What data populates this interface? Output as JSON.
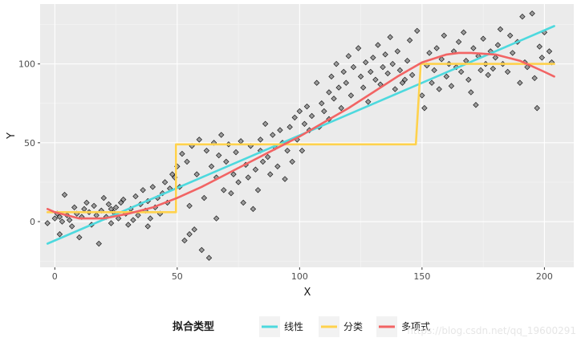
{
  "chart_data": {
    "type": "scatter",
    "xlabel": "X",
    "ylabel": "Y",
    "xlim": [
      -6,
      212
    ],
    "ylim": [
      -29,
      138
    ],
    "x_ticks": [
      0,
      50,
      100,
      150,
      200
    ],
    "y_ticks": [
      0,
      50,
      100
    ],
    "grid": true,
    "legend_position": "bottom",
    "legend": {
      "title": "拟合类型",
      "entries": [
        {
          "label": "线性",
          "color": "#4dd9de"
        },
        {
          "label": "分类",
          "color": "#ffd24d"
        },
        {
          "label": "多项式",
          "color": "#f26464"
        }
      ]
    },
    "points": [
      {
        "x": -3,
        "y": -1
      },
      {
        "x": 0,
        "y": 2
      },
      {
        "x": 1,
        "y": 5
      },
      {
        "x": 2,
        "y": 3
      },
      {
        "x": 3,
        "y": 0
      },
      {
        "x": 4,
        "y": 17
      },
      {
        "x": 5,
        "y": 4
      },
      {
        "x": 6,
        "y": 1
      },
      {
        "x": 7,
        "y": -3
      },
      {
        "x": 8,
        "y": 9
      },
      {
        "x": 9,
        "y": 5
      },
      {
        "x": 10,
        "y": -10
      },
      {
        "x": 11,
        "y": 3
      },
      {
        "x": 12,
        "y": 8
      },
      {
        "x": 13,
        "y": 12
      },
      {
        "x": 14,
        "y": 6
      },
      {
        "x": 15,
        "y": -2
      },
      {
        "x": 16,
        "y": 10
      },
      {
        "x": 17,
        "y": 4
      },
      {
        "x": 18,
        "y": -14
      },
      {
        "x": 19,
        "y": 7
      },
      {
        "x": 20,
        "y": 15
      },
      {
        "x": 21,
        "y": 3
      },
      {
        "x": 22,
        "y": 11
      },
      {
        "x": 23,
        "y": -1
      },
      {
        "x": 24,
        "y": 6
      },
      {
        "x": 25,
        "y": 9
      },
      {
        "x": 26,
        "y": 2
      },
      {
        "x": 27,
        "y": 12
      },
      {
        "x": 28,
        "y": 14
      },
      {
        "x": 29,
        "y": 5
      },
      {
        "x": 30,
        "y": -2
      },
      {
        "x": 31,
        "y": 8
      },
      {
        "x": 32,
        "y": 1
      },
      {
        "x": 33,
        "y": 16
      },
      {
        "x": 34,
        "y": 4
      },
      {
        "x": 35,
        "y": 11
      },
      {
        "x": 36,
        "y": 20
      },
      {
        "x": 37,
        "y": 7
      },
      {
        "x": 38,
        "y": 13
      },
      {
        "x": 39,
        "y": 2
      },
      {
        "x": 40,
        "y": 22
      },
      {
        "x": 41,
        "y": 9
      },
      {
        "x": 42,
        "y": 15
      },
      {
        "x": 43,
        "y": 5
      },
      {
        "x": 44,
        "y": 18
      },
      {
        "x": 45,
        "y": 25
      },
      {
        "x": 46,
        "y": 12
      },
      {
        "x": 47,
        "y": 21
      },
      {
        "x": 48,
        "y": 30
      },
      {
        "x": 49,
        "y": 28
      },
      {
        "x": 50,
        "y": 35
      },
      {
        "x": 51,
        "y": 22
      },
      {
        "x": 52,
        "y": 43
      },
      {
        "x": 53,
        "y": -12
      },
      {
        "x": 54,
        "y": 38
      },
      {
        "x": 55,
        "y": 10
      },
      {
        "x": 56,
        "y": 48
      },
      {
        "x": 57,
        "y": -5
      },
      {
        "x": 58,
        "y": 30
      },
      {
        "x": 59,
        "y": 52
      },
      {
        "x": 60,
        "y": -18
      },
      {
        "x": 61,
        "y": 15
      },
      {
        "x": 62,
        "y": 45
      },
      {
        "x": 63,
        "y": -23
      },
      {
        "x": 64,
        "y": 35
      },
      {
        "x": 65,
        "y": 50
      },
      {
        "x": 66,
        "y": 2
      },
      {
        "x": 67,
        "y": 42
      },
      {
        "x": 68,
        "y": 55
      },
      {
        "x": 69,
        "y": 20
      },
      {
        "x": 70,
        "y": 38
      },
      {
        "x": 71,
        "y": 49
      },
      {
        "x": 72,
        "y": 18
      },
      {
        "x": 73,
        "y": 30
      },
      {
        "x": 74,
        "y": 44
      },
      {
        "x": 75,
        "y": 25
      },
      {
        "x": 76,
        "y": 51
      },
      {
        "x": 77,
        "y": 12
      },
      {
        "x": 78,
        "y": 36
      },
      {
        "x": 79,
        "y": 28
      },
      {
        "x": 80,
        "y": 48
      },
      {
        "x": 81,
        "y": 8
      },
      {
        "x": 82,
        "y": 33
      },
      {
        "x": 83,
        "y": 20
      },
      {
        "x": 84,
        "y": 45
      },
      {
        "x": 85,
        "y": 38
      },
      {
        "x": 86,
        "y": 62
      },
      {
        "x": 87,
        "y": 41
      },
      {
        "x": 88,
        "y": 30
      },
      {
        "x": 89,
        "y": 55
      },
      {
        "x": 90,
        "y": 47
      },
      {
        "x": 91,
        "y": 35
      },
      {
        "x": 92,
        "y": 58
      },
      {
        "x": 93,
        "y": 50
      },
      {
        "x": 94,
        "y": 27
      },
      {
        "x": 95,
        "y": 45
      },
      {
        "x": 96,
        "y": 60
      },
      {
        "x": 97,
        "y": 38
      },
      {
        "x": 98,
        "y": 66
      },
      {
        "x": 99,
        "y": 52
      },
      {
        "x": 100,
        "y": 70
      },
      {
        "x": 101,
        "y": 45
      },
      {
        "x": 102,
        "y": 62
      },
      {
        "x": 103,
        "y": 73
      },
      {
        "x": 104,
        "y": 58
      },
      {
        "x": 105,
        "y": 67
      },
      {
        "x": 107,
        "y": 88
      },
      {
        "x": 108,
        "y": 60
      },
      {
        "x": 109,
        "y": 75
      },
      {
        "x": 110,
        "y": 70
      },
      {
        "x": 112,
        "y": 82
      },
      {
        "x": 113,
        "y": 92
      },
      {
        "x": 114,
        "y": 78
      },
      {
        "x": 115,
        "y": 100
      },
      {
        "x": 116,
        "y": 85
      },
      {
        "x": 117,
        "y": 72
      },
      {
        "x": 118,
        "y": 95
      },
      {
        "x": 119,
        "y": 88
      },
      {
        "x": 120,
        "y": 105
      },
      {
        "x": 121,
        "y": 80
      },
      {
        "x": 122,
        "y": 98
      },
      {
        "x": 124,
        "y": 110
      },
      {
        "x": 125,
        "y": 92
      },
      {
        "x": 126,
        "y": 85
      },
      {
        "x": 127,
        "y": 101
      },
      {
        "x": 128,
        "y": 76
      },
      {
        "x": 129,
        "y": 95
      },
      {
        "x": 130,
        "y": 104
      },
      {
        "x": 131,
        "y": 90
      },
      {
        "x": 132,
        "y": 112
      },
      {
        "x": 133,
        "y": 87
      },
      {
        "x": 134,
        "y": 98
      },
      {
        "x": 135,
        "y": 106
      },
      {
        "x": 136,
        "y": 94
      },
      {
        "x": 137,
        "y": 117
      },
      {
        "x": 138,
        "y": 100
      },
      {
        "x": 139,
        "y": 84
      },
      {
        "x": 140,
        "y": 108
      },
      {
        "x": 141,
        "y": 96
      },
      {
        "x": 142,
        "y": 88
      },
      {
        "x": 144,
        "y": 102
      },
      {
        "x": 145,
        "y": 115
      },
      {
        "x": 146,
        "y": 93
      },
      {
        "x": 148,
        "y": 121
      },
      {
        "x": 150,
        "y": 80
      },
      {
        "x": 151,
        "y": 72
      },
      {
        "x": 152,
        "y": 99
      },
      {
        "x": 153,
        "y": 107
      },
      {
        "x": 154,
        "y": 88
      },
      {
        "x": 155,
        "y": 96
      },
      {
        "x": 156,
        "y": 110
      },
      {
        "x": 157,
        "y": 84
      },
      {
        "x": 158,
        "y": 103
      },
      {
        "x": 159,
        "y": 118
      },
      {
        "x": 160,
        "y": 92
      },
      {
        "x": 161,
        "y": 100
      },
      {
        "x": 162,
        "y": 86
      },
      {
        "x": 163,
        "y": 108
      },
      {
        "x": 164,
        "y": 98
      },
      {
        "x": 165,
        "y": 114
      },
      {
        "x": 166,
        "y": 95
      },
      {
        "x": 167,
        "y": 120
      },
      {
        "x": 168,
        "y": 102
      },
      {
        "x": 169,
        "y": 90
      },
      {
        "x": 170,
        "y": 82
      },
      {
        "x": 171,
        "y": 110
      },
      {
        "x": 172,
        "y": 74
      },
      {
        "x": 173,
        "y": 105
      },
      {
        "x": 174,
        "y": 96
      },
      {
        "x": 175,
        "y": 116
      },
      {
        "x": 176,
        "y": 100
      },
      {
        "x": 177,
        "y": 93
      },
      {
        "x": 178,
        "y": 108
      },
      {
        "x": 179,
        "y": 97
      },
      {
        "x": 180,
        "y": 104
      },
      {
        "x": 181,
        "y": 112
      },
      {
        "x": 182,
        "y": 122
      },
      {
        "x": 183,
        "y": 100
      },
      {
        "x": 185,
        "y": 95
      },
      {
        "x": 186,
        "y": 118
      },
      {
        "x": 187,
        "y": 107
      },
      {
        "x": 189,
        "y": 114
      },
      {
        "x": 190,
        "y": 88
      },
      {
        "x": 191,
        "y": 130
      },
      {
        "x": 192,
        "y": 101
      },
      {
        "x": 193,
        "y": 98
      },
      {
        "x": 195,
        "y": 132
      },
      {
        "x": 196,
        "y": 91
      },
      {
        "x": 197,
        "y": 72
      },
      {
        "x": 198,
        "y": 111
      },
      {
        "x": 199,
        "y": 104
      },
      {
        "x": 200,
        "y": 120
      },
      {
        "x": 202,
        "y": 108
      },
      {
        "x": 203,
        "y": 101
      },
      {
        "x": 2,
        "y": -8
      },
      {
        "x": 23,
        "y": 8
      },
      {
        "x": 38,
        "y": -3
      },
      {
        "x": 55,
        "y": -8
      },
      {
        "x": 66,
        "y": 28
      },
      {
        "x": 84,
        "y": 52
      },
      {
        "x": 112,
        "y": 65
      },
      {
        "x": 143,
        "y": 90
      }
    ],
    "series": [
      {
        "name": "线性",
        "color": "#4dd9de",
        "x": [
          -3,
          204
        ],
        "y": [
          -14,
          124
        ]
      },
      {
        "name": "分类",
        "color": "#ffd24d",
        "x": [
          -3,
          49.5,
          49.5,
          147.5,
          149.5,
          204
        ],
        "y": [
          6,
          6,
          49,
          49,
          100,
          100
        ]
      },
      {
        "name": "多项式",
        "color": "#f26464",
        "x": [
          -3,
          0,
          10,
          20,
          30,
          40,
          50,
          60,
          70,
          80,
          90,
          100,
          110,
          120,
          130,
          140,
          150,
          160,
          165,
          170,
          180,
          190,
          200,
          204
        ],
        "y": [
          8,
          6,
          2,
          2,
          5,
          9,
          15,
          22,
          30,
          38,
          46,
          54,
          63,
          72,
          82,
          92,
          101,
          106,
          107,
          107,
          106,
          102,
          95,
          92
        ]
      }
    ],
    "watermark": "https://blog.csdn.net/qq_19600291"
  }
}
